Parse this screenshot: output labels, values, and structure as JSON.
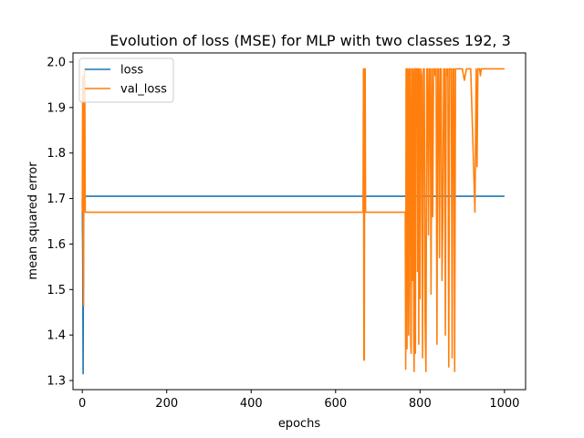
{
  "chart_data": {
    "type": "line",
    "title": "Evolution of loss (MSE) for MLP with two classes 192, 3",
    "xlabel": "epochs",
    "ylabel": "mean squared error",
    "xlim": [
      -22,
      1050
    ],
    "ylim": [
      1.28,
      2.02
    ],
    "xticks": [
      0,
      200,
      400,
      600,
      800,
      1000
    ],
    "yticks": [
      1.3,
      1.4,
      1.5,
      1.6,
      1.7,
      1.8,
      1.9,
      2.0
    ],
    "xtick_labels": [
      "0",
      "200",
      "400",
      "600",
      "800",
      "1000"
    ],
    "ytick_labels": [
      "1.3",
      "1.4",
      "1.5",
      "1.6",
      "1.7",
      "1.8",
      "1.9",
      "2.0"
    ],
    "grid": false,
    "legend_position": "top-left",
    "series": [
      {
        "name": "loss",
        "color": "#1f77b4",
        "x": [
          0,
          1,
          2,
          3,
          4,
          5,
          1000
        ],
        "y": [
          1.7,
          1.58,
          1.315,
          1.68,
          1.705,
          1.705,
          1.705
        ]
      },
      {
        "name": "val_loss",
        "color": "#ff7f0e",
        "x": [
          0,
          1,
          2,
          3,
          4,
          5,
          6,
          7,
          8,
          9,
          10,
          665,
          666,
          667,
          668,
          669,
          670,
          671,
          672,
          765,
          766,
          767,
          768,
          769,
          770,
          771,
          772,
          773,
          774,
          775,
          776,
          777,
          778,
          779,
          780,
          781,
          782,
          783,
          784,
          785,
          786,
          787,
          788,
          789,
          790,
          791,
          792,
          793,
          794,
          795,
          796,
          797,
          798,
          799,
          800,
          802,
          804,
          806,
          808,
          810,
          812,
          814,
          816,
          818,
          820,
          822,
          824,
          826,
          828,
          830,
          832,
          834,
          836,
          838,
          840,
          842,
          844,
          846,
          848,
          850,
          852,
          854,
          856,
          858,
          860,
          862,
          864,
          866,
          868,
          870,
          872,
          874,
          876,
          878,
          880,
          882,
          884,
          886,
          888,
          890,
          892,
          894,
          896,
          898,
          900,
          905,
          910,
          920,
          930,
          933,
          935,
          937,
          939,
          941,
          943,
          945,
          947,
          950,
          955,
          960,
          965,
          970,
          975,
          980,
          1000
        ],
        "y": [
          1.67,
          1.97,
          1.61,
          1.465,
          1.9,
          1.985,
          1.94,
          1.67,
          1.67,
          1.67,
          1.67,
          1.67,
          1.985,
          1.345,
          1.345,
          1.985,
          1.985,
          1.67,
          1.67,
          1.67,
          1.325,
          1.985,
          1.985,
          1.37,
          1.65,
          1.985,
          1.98,
          1.4,
          1.51,
          1.985,
          1.985,
          1.985,
          1.38,
          1.36,
          1.8,
          1.985,
          1.52,
          1.985,
          1.97,
          1.4,
          1.32,
          1.985,
          1.985,
          1.36,
          1.985,
          1.86,
          1.985,
          1.985,
          1.54,
          1.985,
          1.975,
          1.38,
          1.985,
          1.95,
          1.48,
          1.985,
          1.97,
          1.35,
          1.985,
          1.985,
          1.43,
          1.32,
          1.985,
          1.985,
          1.62,
          1.985,
          1.985,
          1.49,
          1.985,
          1.66,
          1.985,
          1.985,
          1.97,
          1.985,
          1.38,
          1.985,
          1.985,
          1.57,
          1.985,
          1.985,
          1.52,
          1.66,
          1.985,
          1.985,
          1.4,
          1.985,
          1.97,
          1.985,
          1.33,
          1.985,
          1.985,
          1.985,
          1.35,
          1.985,
          1.985,
          1.32,
          1.985,
          1.985,
          1.985,
          1.985,
          1.985,
          1.985,
          1.985,
          1.985,
          1.985,
          1.96,
          1.985,
          1.985,
          1.67,
          1.985,
          1.77,
          1.985,
          1.985,
          1.985,
          1.97,
          1.985,
          1.985,
          1.985,
          1.985,
          1.985,
          1.985,
          1.985,
          1.985,
          1.985,
          1.985
        ]
      }
    ]
  }
}
